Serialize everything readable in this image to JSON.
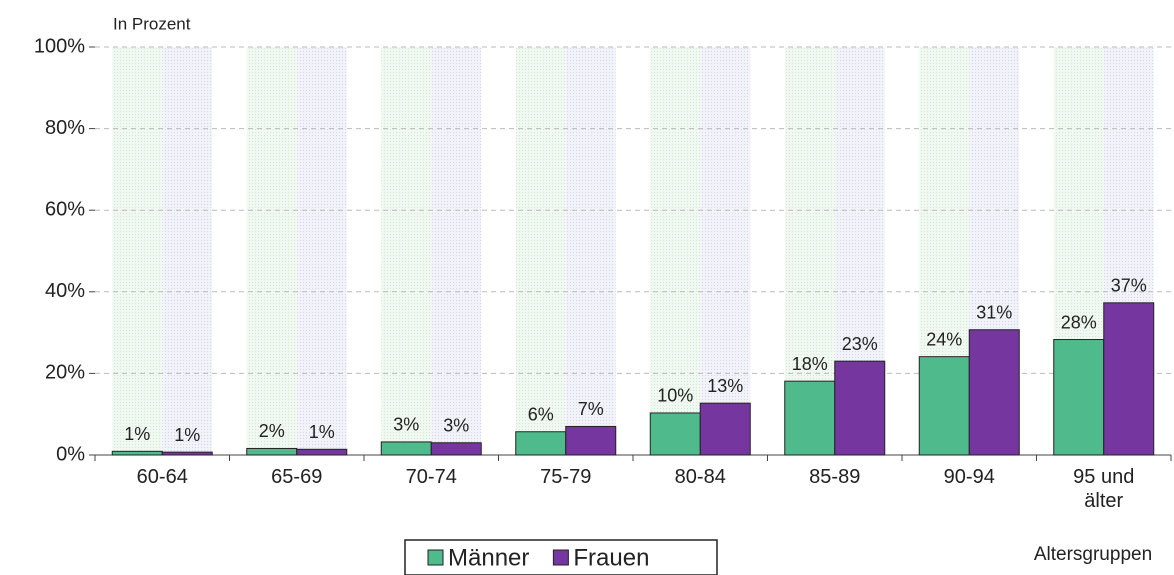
{
  "chart_data": {
    "type": "bar",
    "subtitle": "In Prozent",
    "x_label": "Altersgruppen",
    "categories": [
      "60-64",
      "65-69",
      "70-74",
      "75-79",
      "80-84",
      "85-89",
      "90-94",
      "95 und\nälter"
    ],
    "series": [
      {
        "name": "Männer",
        "color": "#4fbb8c",
        "values": [
          0.9,
          1.6,
          3.2,
          5.7,
          10.3,
          18.1,
          24.1,
          28.3
        ],
        "value_labels": [
          "1%",
          "2%",
          "3%",
          "6%",
          "10%",
          "18%",
          "24%",
          "28%"
        ]
      },
      {
        "name": "Frauen",
        "color": "#7636a0",
        "values": [
          0.7,
          1.4,
          3.0,
          7.0,
          12.7,
          23.0,
          30.7,
          37.3
        ],
        "value_labels": [
          "1%",
          "1%",
          "3%",
          "7%",
          "13%",
          "23%",
          "31%",
          "37%"
        ]
      }
    ],
    "ylim": [
      0,
      100
    ],
    "yticks": [
      {
        "value": 0,
        "label": "0%"
      },
      {
        "value": 20,
        "label": "20%"
      },
      {
        "value": 40,
        "label": "40%"
      },
      {
        "value": 60,
        "label": "60%"
      },
      {
        "value": 80,
        "label": "80%"
      },
      {
        "value": 100,
        "label": "100%"
      }
    ],
    "grid": true,
    "legend": "bottom"
  }
}
